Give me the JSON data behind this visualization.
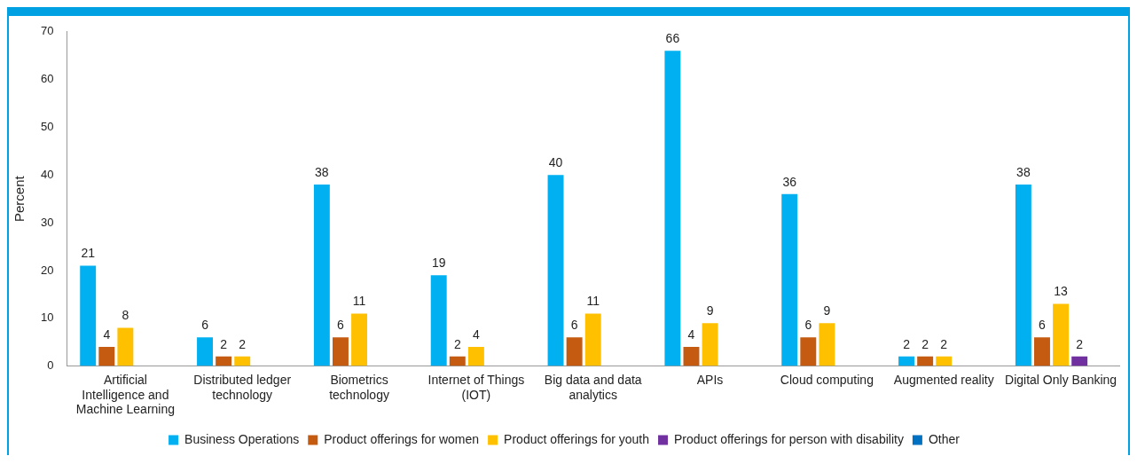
{
  "chart_data": {
    "type": "bar",
    "ylabel": "Percent",
    "categories": [
      "Artificial Intelligence and Machine Learning",
      "Distributed ledger technology",
      "Biometrics technology",
      "Internet of Things (IOT)",
      "Big data and data analytics",
      "APIs",
      "Cloud computing",
      "Augmented reality",
      "Digital Only Banking"
    ],
    "series": [
      {
        "name": "Business Operations",
        "color": "#00b0f0",
        "values": [
          21,
          6,
          38,
          19,
          40,
          66,
          36,
          2,
          38
        ]
      },
      {
        "name": "Product offerings for women",
        "color": "#c55a11",
        "values": [
          4,
          2,
          6,
          2,
          6,
          4,
          6,
          2,
          6
        ]
      },
      {
        "name": "Product offerings for youth",
        "color": "#ffc000",
        "values": [
          8,
          2,
          11,
          4,
          11,
          9,
          9,
          2,
          13
        ]
      },
      {
        "name": "Product offerings for person with disability",
        "color": "#7030a0",
        "values": [
          null,
          null,
          null,
          null,
          null,
          null,
          null,
          null,
          2
        ]
      },
      {
        "name": "Other",
        "color": "#0070c0",
        "values": [
          null,
          null,
          null,
          null,
          null,
          null,
          null,
          null,
          null
        ]
      }
    ],
    "ylim": [
      0,
      70
    ],
    "yticks": [
      0,
      10,
      20,
      30,
      40,
      50,
      60,
      70
    ],
    "grid": false,
    "legend": "bottom",
    "data_labels": true
  }
}
